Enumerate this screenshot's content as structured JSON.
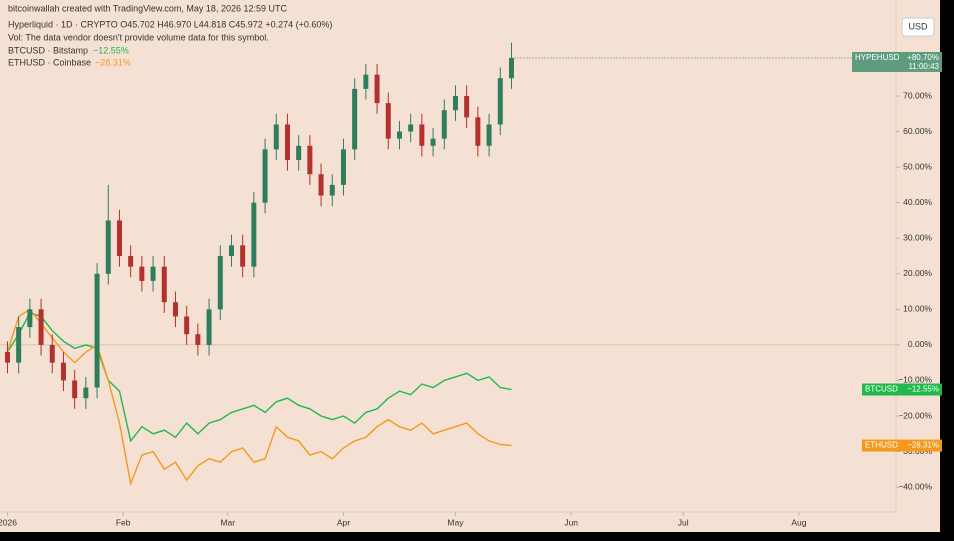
{
  "chart_data": {
    "type": "candlestick",
    "credit": "bitcoinwallah created with TradingView.com, May 18, 2026 12:59 UTC",
    "symbol_line": "Hyperliquid · 1D · CRYPTO  O45.702  H46.970  L44.818  C45.972  +0.274 (+0.60%)",
    "volume_note": "Vol: The data vendor doesn't provide volume data for this symbol.",
    "currency": "USD",
    "candles": {
      "name": "HYPEHUSD",
      "up_color": "#2f7d5c",
      "down_color": "#b3302e",
      "open": [
        -2,
        -5,
        5,
        10,
        0,
        -5,
        -10,
        -15,
        -12,
        20,
        35,
        25,
        22,
        18,
        22,
        12,
        8,
        3,
        0,
        10,
        25,
        28,
        22,
        40,
        55,
        62,
        52,
        56,
        48,
        42,
        45,
        55,
        72,
        76,
        68,
        58,
        60,
        62,
        56,
        58,
        66,
        70,
        64,
        56,
        62,
        75
      ],
      "high": [
        1,
        8,
        13,
        13,
        3,
        -2,
        -7,
        -9,
        23,
        45,
        38,
        28,
        25,
        25,
        25,
        15,
        11,
        6,
        13,
        28,
        31,
        31,
        43,
        58,
        65,
        65,
        59,
        59,
        51,
        48,
        58,
        75,
        79,
        79,
        71,
        63,
        65,
        65,
        61,
        69,
        73,
        73,
        67,
        65,
        78,
        85
      ],
      "low": [
        -8,
        -8,
        2,
        -3,
        -8,
        -13,
        -18,
        -18,
        -15,
        17,
        22,
        19,
        15,
        15,
        9,
        5,
        0,
        -3,
        -3,
        7,
        22,
        19,
        19,
        37,
        52,
        49,
        49,
        45,
        39,
        39,
        42,
        52,
        69,
        65,
        55,
        55,
        57,
        53,
        53,
        55,
        63,
        61,
        53,
        53,
        59,
        72
      ],
      "close": [
        -5,
        5,
        10,
        0,
        -5,
        -10,
        -15,
        -12,
        20,
        35,
        25,
        22,
        18,
        22,
        12,
        8,
        3,
        0,
        10,
        25,
        28,
        22,
        40,
        55,
        62,
        52,
        56,
        48,
        42,
        45,
        55,
        72,
        76,
        68,
        58,
        60,
        62,
        56,
        58,
        66,
        70,
        64,
        56,
        62,
        75,
        80.7
      ],
      "last_label": "+80.70%",
      "time_label": "11:00:43"
    },
    "series": [
      {
        "name": "BTCUSD",
        "legend": "BTCUSD · Bitstamp",
        "color": "#22b94c",
        "values": [
          -2,
          3,
          9,
          8,
          4,
          1,
          -1,
          0,
          -1,
          -10,
          -13,
          -27,
          -23,
          -25,
          -24,
          -26,
          -22,
          -25,
          -22,
          -21,
          -19,
          -18,
          -17,
          -19,
          -16,
          -15,
          -17,
          -18,
          -20,
          -21,
          -20,
          -22,
          -19,
          -18,
          -15,
          -13,
          -14,
          -11,
          -12,
          -10,
          -9,
          -8,
          -10,
          -9,
          -12,
          -12.55
        ],
        "last_label": "−12.55%"
      },
      {
        "name": "ETHUSD",
        "legend": "ETHUSD · Coinbase",
        "color": "#f39a1e",
        "values": [
          -2,
          8,
          10,
          6,
          2,
          -2,
          -5,
          -2,
          0,
          -10,
          -22,
          -39,
          -31,
          -30,
          -35,
          -33,
          -38,
          -34,
          -32,
          -33,
          -30,
          -29,
          -33,
          -32,
          -23,
          -26,
          -27,
          -31,
          -30,
          -32,
          -29,
          -27,
          -26,
          -23,
          -21,
          -23,
          -24,
          -22,
          -25,
          -24,
          -23,
          -22,
          -25,
          -27,
          -28,
          -28.31
        ],
        "last_label": "−28.31%"
      }
    ],
    "xlim": [
      -2,
      238
    ],
    "xticks": [
      {
        "value": 0,
        "label": "2026"
      },
      {
        "value": 31,
        "label": "Feb"
      },
      {
        "value": 59,
        "label": "Mar"
      },
      {
        "value": 90,
        "label": "Apr"
      },
      {
        "value": 120,
        "label": "May"
      },
      {
        "value": 151,
        "label": "Jun"
      },
      {
        "value": 181,
        "label": "Jul"
      },
      {
        "value": 212,
        "label": "Aug"
      }
    ],
    "ylim": [
      -47,
      97
    ],
    "yticks": [
      {
        "value": -40,
        "label": "−40.00%"
      },
      {
        "value": -30,
        "label": "−30.00%"
      },
      {
        "value": -20,
        "label": "−20.00%"
      },
      {
        "value": -10,
        "label": "−10.00%"
      },
      {
        "value": 0,
        "label": "0.00%"
      },
      {
        "value": 10,
        "label": "10.00%"
      },
      {
        "value": 20,
        "label": "20.00%"
      },
      {
        "value": 30,
        "label": "30.00%"
      },
      {
        "value": 40,
        "label": "40.00%"
      },
      {
        "value": 50,
        "label": "50.00%"
      },
      {
        "value": 60,
        "label": "60.00%"
      },
      {
        "value": 70,
        "label": "70.00%"
      }
    ],
    "span_days": 135
  }
}
